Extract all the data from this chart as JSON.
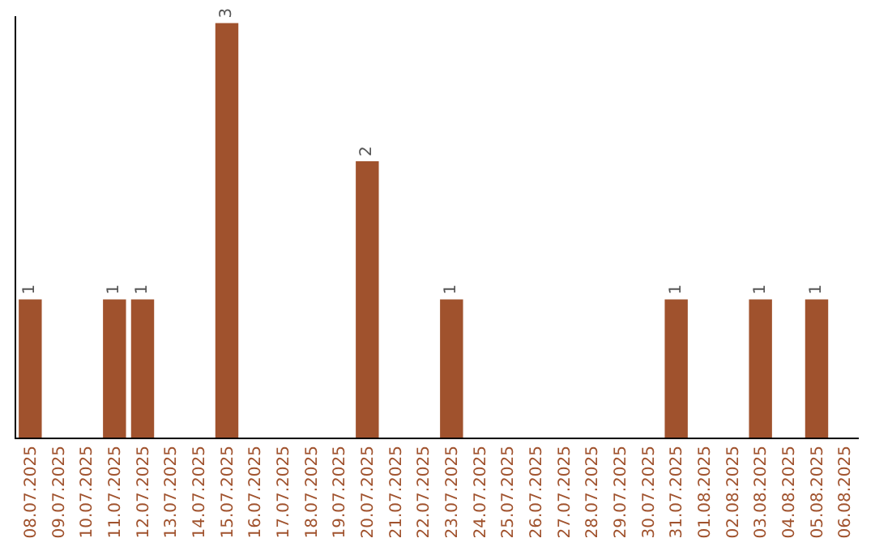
{
  "chart_data": {
    "type": "bar",
    "categories": [
      "08.07.2025",
      "09.07.2025",
      "10.07.2025",
      "11.07.2025",
      "12.07.2025",
      "13.07.2025",
      "14.07.2025",
      "15.07.2025",
      "16.07.2025",
      "17.07.2025",
      "18.07.2025",
      "19.07.2025",
      "20.07.2025",
      "21.07.2025",
      "22.07.2025",
      "23.07.2025",
      "24.07.2025",
      "25.07.2025",
      "26.07.2025",
      "27.07.2025",
      "28.07.2025",
      "29.07.2025",
      "30.07.2025",
      "31.07.2025",
      "01.08.2025",
      "02.08.2025",
      "03.08.2025",
      "04.08.2025",
      "05.08.2025",
      "06.08.2025"
    ],
    "values": [
      1,
      0,
      0,
      1,
      1,
      0,
      0,
      3,
      0,
      0,
      0,
      0,
      2,
      0,
      0,
      1,
      0,
      0,
      0,
      0,
      0,
      0,
      0,
      1,
      0,
      0,
      1,
      0,
      1,
      0
    ],
    "value_labels": [
      "1",
      null,
      null,
      "1",
      "1",
      null,
      null,
      "3",
      null,
      null,
      null,
      null,
      "2",
      null,
      null,
      "1",
      null,
      null,
      null,
      null,
      null,
      null,
      null,
      "1",
      null,
      null,
      "1",
      null,
      "1",
      null
    ],
    "color": "#a0522d",
    "ylim": [
      0,
      3.05
    ],
    "grid": false,
    "legend": false
  }
}
